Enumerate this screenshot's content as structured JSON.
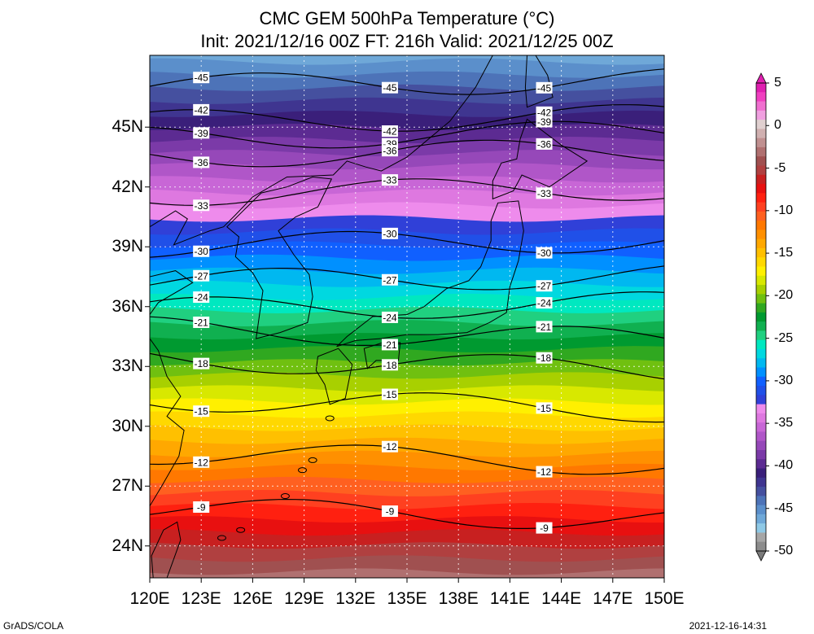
{
  "title_line1": "CMC GEM 500hPa Temperature (°C)",
  "title_line2": "Init: 2021/12/16 00Z  FT: 216h  Valid: 2021/12/25 00Z",
  "map": {
    "lon_range": [
      120,
      150
    ],
    "lat_range": [
      22.4,
      48.6
    ],
    "x_ticks": [
      "120E",
      "123E",
      "126E",
      "129E",
      "132E",
      "135E",
      "138E",
      "141E",
      "144E",
      "147E",
      "150E"
    ],
    "y_ticks": [
      "45N",
      "42N",
      "39N",
      "36N",
      "33N",
      "30N",
      "27N",
      "24N"
    ],
    "y_tick_values": [
      45,
      42,
      39,
      36,
      33,
      30,
      27,
      24
    ]
  },
  "colorbar": {
    "labels": [
      "5",
      "0",
      "-5",
      "-10",
      "-15",
      "-20",
      "-25",
      "-30",
      "-35",
      "-40",
      "-45",
      "-50"
    ],
    "label_values": [
      5,
      0,
      -5,
      -10,
      -15,
      -20,
      -25,
      -30,
      -35,
      -40,
      -45,
      -50
    ],
    "colors": [
      "#8c8c8c",
      "#a6a6a6",
      "#8fc9e6",
      "#6fa8d8",
      "#5b8fcb",
      "#4d73b8",
      "#45509f",
      "#3f3590",
      "#3a1f7a",
      "#5c2b92",
      "#7b3aa8",
      "#9648b9",
      "#b056c8",
      "#c866d6",
      "#de78e0",
      "#ee8bec",
      "#3040d8",
      "#2050e8",
      "#1060ff",
      "#0090ff",
      "#00b8f0",
      "#00d8e0",
      "#00e8c0",
      "#20d080",
      "#10b050",
      "#009a30",
      "#30a820",
      "#70c010",
      "#a8d000",
      "#d8e800",
      "#fff000",
      "#ffd800",
      "#ffc000",
      "#ffa800",
      "#ff9000",
      "#ff7800",
      "#ff6020",
      "#ff4020",
      "#ff2010",
      "#e81010",
      "#c82020",
      "#b04040",
      "#a05050",
      "#b07070",
      "#c09090",
      "#d0b0b0",
      "#e0d0d0",
      "#f0a0e0",
      "#f070d0",
      "#f040c0",
      "#e020b0"
    ],
    "top_color": "#e020b0",
    "bottom_color": "#7a7a7a"
  },
  "contours": [
    {
      "label": "-45",
      "lat": 47.2
    },
    {
      "label": "-42",
      "lat": 45.4
    },
    {
      "label": "-39",
      "lat": 44.6
    },
    {
      "label": "-36",
      "lat": 43.7
    },
    {
      "label": "-33",
      "lat": 41.8
    },
    {
      "label": "-30",
      "lat": 39.2
    },
    {
      "label": "-27",
      "lat": 37.4
    },
    {
      "label": "-24",
      "lat": 36.0
    },
    {
      "label": "-21",
      "lat": 34.6
    },
    {
      "label": "-18",
      "lat": 33.1
    },
    {
      "label": "-15",
      "lat": 31.1
    },
    {
      "label": "-12",
      "lat": 28.4
    },
    {
      "label": "-9",
      "lat": 25.6
    }
  ],
  "footer_left": "GrADS/COLA",
  "footer_right": "2021-12-16-14:31"
}
